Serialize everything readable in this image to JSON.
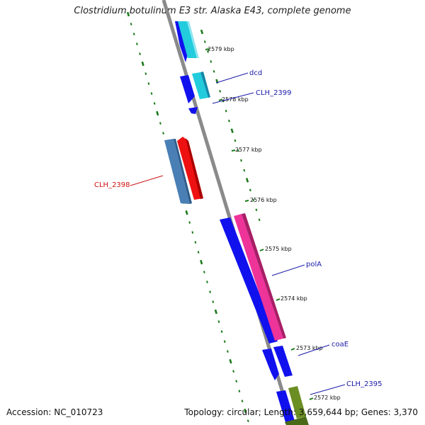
{
  "title": "Clostridium botulinum E3 str. Alaska E43, complete genome",
  "footer": {
    "accession": "Accession: NC_010723",
    "summary": "Topology: circular; Length: 3,659,644 bp; Genes: 3,370"
  },
  "colors": {
    "backbone": "#8a8a8a",
    "ticks": "#1a7a1a",
    "gene_blue": "#1111ee",
    "gene_cyan": "#22ccdd",
    "gene_pink": "#ee3399",
    "gene_red": "#ee1111",
    "gene_steel": "#4a7fb5",
    "gene_olive": "#6b8e23",
    "label_blue": "#1a1aaa",
    "label_red": "#cc1111"
  },
  "ruler": [
    "2579 kbp",
    "2578 kbp",
    "2577 kbp",
    "2576 kbp",
    "2575 kbp",
    "2574 kbp",
    "2573 kbp",
    "2572 kbp"
  ],
  "genes": [
    {
      "label": "dcd",
      "label_color": "blue"
    },
    {
      "label": "CLH_2399",
      "label_color": "blue"
    },
    {
      "label": "CLH_2398",
      "label_color": "red"
    },
    {
      "label": "polA",
      "label_color": "blue"
    },
    {
      "label": "coaE",
      "label_color": "blue"
    },
    {
      "label": "CLH_2395",
      "label_color": "blue"
    }
  ]
}
